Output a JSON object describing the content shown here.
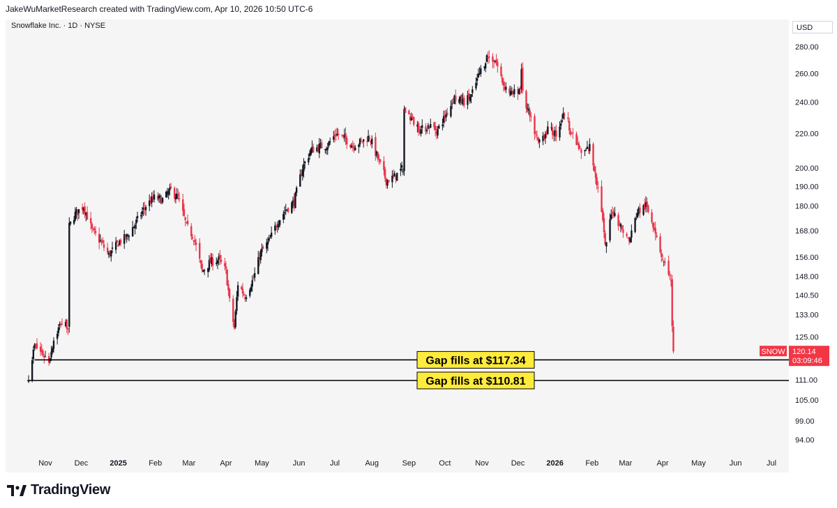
{
  "header": {
    "attribution": "JakeWuMarketResearch created with TradingView.com, Apr 10, 2026 10:50 UTC-6"
  },
  "symbol_title": "Snowflake Inc. · 1D · NYSE",
  "currency": "USD",
  "brand": "TradingView",
  "colors": {
    "up": "#131722",
    "down": "#e8364a",
    "annotation_bg": "#ffeb3b",
    "line": "#000000",
    "price_label": "#f23645"
  },
  "chart_data": {
    "type": "candlestick",
    "title": "Snowflake Inc. · 1D · NYSE",
    "ylabel": "USD",
    "log_scale": true,
    "ylim": [
      90,
      290
    ],
    "y_ticks": [
      280.0,
      260.0,
      240.0,
      220.0,
      200.0,
      190.0,
      180.0,
      168.0,
      156.0,
      148.0,
      140.5,
      133.0,
      125.0,
      111.0,
      105.0,
      99.0,
      94.0
    ],
    "x_ticks": [
      {
        "label": "Nov",
        "date": "2024-11-01",
        "bold": false
      },
      {
        "label": "Dec",
        "date": "2024-12-01",
        "bold": false
      },
      {
        "label": "2025",
        "date": "2025-01-01",
        "bold": true
      },
      {
        "label": "Feb",
        "date": "2025-02-01",
        "bold": false
      },
      {
        "label": "Mar",
        "date": "2025-03-01",
        "bold": false
      },
      {
        "label": "Apr",
        "date": "2025-04-01",
        "bold": false
      },
      {
        "label": "May",
        "date": "2025-05-01",
        "bold": false
      },
      {
        "label": "Jun",
        "date": "2025-06-01",
        "bold": false
      },
      {
        "label": "Jul",
        "date": "2025-07-01",
        "bold": false
      },
      {
        "label": "Aug",
        "date": "2025-08-01",
        "bold": false
      },
      {
        "label": "Sep",
        "date": "2025-09-01",
        "bold": false
      },
      {
        "label": "Oct",
        "date": "2025-10-01",
        "bold": false
      },
      {
        "label": "Nov",
        "date": "2025-11-01",
        "bold": false
      },
      {
        "label": "Dec",
        "date": "2025-12-01",
        "bold": false
      },
      {
        "label": "2026",
        "date": "2026-01-01",
        "bold": true
      },
      {
        "label": "Feb",
        "date": "2026-02-01",
        "bold": false
      },
      {
        "label": "Mar",
        "date": "2026-03-01",
        "bold": false
      },
      {
        "label": "Apr",
        "date": "2026-04-01",
        "bold": false
      },
      {
        "label": "May",
        "date": "2026-05-01",
        "bold": false
      },
      {
        "label": "Jun",
        "date": "2026-06-01",
        "bold": false
      },
      {
        "label": "Jul",
        "date": "2026-07-01",
        "bold": false
      }
    ],
    "series": [
      {
        "kind": "close_path_approx",
        "points": [
          [
            "2024-10-18",
            112
          ],
          [
            "2024-10-23",
            122
          ],
          [
            "2024-10-28",
            120
          ],
          [
            "2024-11-04",
            117
          ],
          [
            "2024-11-08",
            124
          ],
          [
            "2024-11-14",
            130
          ],
          [
            "2024-11-20",
            129
          ],
          [
            "2024-11-21",
            170
          ],
          [
            "2024-11-26",
            176
          ],
          [
            "2024-12-03",
            180
          ],
          [
            "2024-12-10",
            168
          ],
          [
            "2024-12-17",
            163
          ],
          [
            "2024-12-24",
            157
          ],
          [
            "2025-01-02",
            163
          ],
          [
            "2025-01-08",
            165
          ],
          [
            "2025-01-16",
            172
          ],
          [
            "2025-01-24",
            180
          ],
          [
            "2025-01-31",
            184
          ],
          [
            "2025-02-07",
            183
          ],
          [
            "2025-02-14",
            188
          ],
          [
            "2025-02-20",
            184
          ],
          [
            "2025-02-27",
            170
          ],
          [
            "2025-03-05",
            165
          ],
          [
            "2025-03-12",
            150
          ],
          [
            "2025-03-19",
            154
          ],
          [
            "2025-03-26",
            155
          ],
          [
            "2025-04-01",
            150
          ],
          [
            "2025-04-04",
            138
          ],
          [
            "2025-04-08",
            128
          ],
          [
            "2025-04-11",
            145
          ],
          [
            "2025-04-17",
            140
          ],
          [
            "2025-04-24",
            147
          ],
          [
            "2025-04-30",
            158
          ],
          [
            "2025-05-07",
            163
          ],
          [
            "2025-05-14",
            172
          ],
          [
            "2025-05-21",
            178
          ],
          [
            "2025-05-28",
            182
          ],
          [
            "2025-06-04",
            200
          ],
          [
            "2025-06-11",
            210
          ],
          [
            "2025-06-18",
            212
          ],
          [
            "2025-06-25",
            213
          ],
          [
            "2025-07-02",
            220
          ],
          [
            "2025-07-09",
            217
          ],
          [
            "2025-07-16",
            213
          ],
          [
            "2025-07-23",
            215
          ],
          [
            "2025-07-30",
            218
          ],
          [
            "2025-08-06",
            205
          ],
          [
            "2025-08-13",
            193
          ],
          [
            "2025-08-20",
            195
          ],
          [
            "2025-08-27",
            200
          ],
          [
            "2025-08-28",
            235
          ],
          [
            "2025-09-04",
            228
          ],
          [
            "2025-09-11",
            222
          ],
          [
            "2025-09-18",
            225
          ],
          [
            "2025-09-25",
            222
          ],
          [
            "2025-10-02",
            232
          ],
          [
            "2025-10-09",
            243
          ],
          [
            "2025-10-16",
            240
          ],
          [
            "2025-10-23",
            244
          ],
          [
            "2025-10-30",
            260
          ],
          [
            "2025-11-05",
            272
          ],
          [
            "2025-11-12",
            270
          ],
          [
            "2025-11-19",
            252
          ],
          [
            "2025-11-26",
            245
          ],
          [
            "2025-12-03",
            250
          ],
          [
            "2025-12-04",
            265
          ],
          [
            "2025-12-05",
            245
          ],
          [
            "2025-12-11",
            230
          ],
          [
            "2025-12-18",
            215
          ],
          [
            "2025-12-26",
            222
          ],
          [
            "2026-01-02",
            220
          ],
          [
            "2026-01-09",
            233
          ],
          [
            "2026-01-16",
            218
          ],
          [
            "2026-01-23",
            208
          ],
          [
            "2026-01-30",
            212
          ],
          [
            "2026-02-04",
            196
          ],
          [
            "2026-02-09",
            178
          ],
          [
            "2026-02-12",
            160
          ],
          [
            "2026-02-18",
            178
          ],
          [
            "2026-02-25",
            170
          ],
          [
            "2026-03-04",
            163
          ],
          [
            "2026-03-11",
            177
          ],
          [
            "2026-03-18",
            180
          ],
          [
            "2026-03-25",
            170
          ],
          [
            "2026-04-01",
            155
          ],
          [
            "2026-04-06",
            150
          ],
          [
            "2026-04-08",
            145
          ],
          [
            "2026-04-09",
            130
          ],
          [
            "2026-04-10",
            120.14
          ]
        ]
      }
    ],
    "horizontal_lines": [
      {
        "price": 117.34,
        "label": "Gap fills at $117.34",
        "start": "2024-10-23"
      },
      {
        "price": 110.81,
        "label": "Gap fills at $110.81",
        "start": "2024-10-17"
      }
    ],
    "last_price": {
      "symbol": "SNOW",
      "price": "120.14",
      "countdown": "03:09:46"
    }
  }
}
